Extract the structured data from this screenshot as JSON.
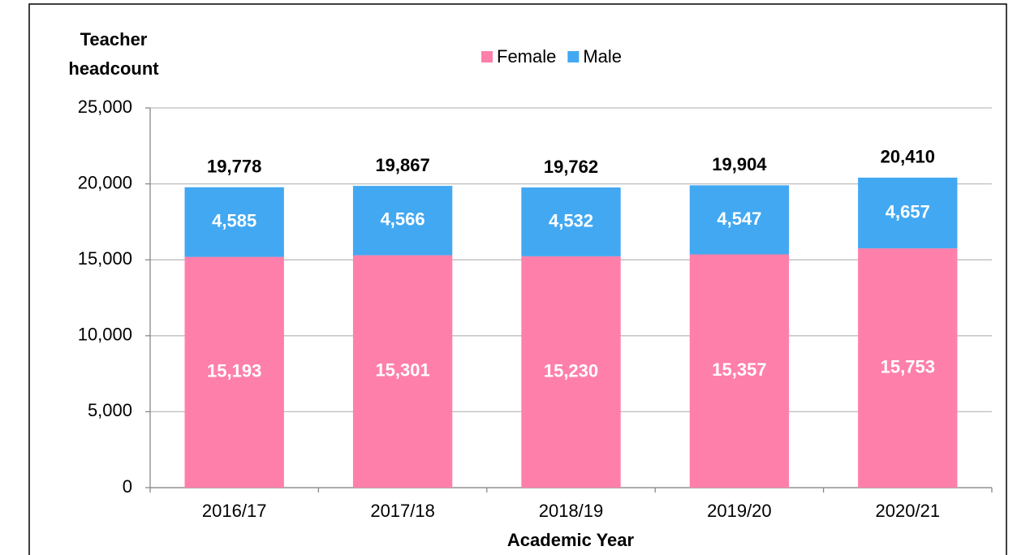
{
  "chart_data": {
    "type": "stacked_bar",
    "ylabel": [
      "Teacher",
      "headcount"
    ],
    "xlabel": "Academic  Year",
    "categories": [
      "2016/17",
      "2017/18",
      "2018/19",
      "2019/20",
      "2020/21"
    ],
    "series": [
      {
        "name": "Female",
        "color": "#ff7fab",
        "values": [
          15193,
          15301,
          15230,
          15357,
          15753
        ],
        "value_labels": [
          "15,193",
          "15,301",
          "15,230",
          "15,357",
          "15,753"
        ]
      },
      {
        "name": "Male",
        "color": "#42a8f2",
        "values": [
          4585,
          4566,
          4532,
          4547,
          4657
        ],
        "value_labels": [
          "4,585",
          "4,566",
          "4,532",
          "4,547",
          "4,657"
        ]
      }
    ],
    "totals": [
      19778,
      19867,
      19762,
      19904,
      20410
    ],
    "totals_labels": [
      "19,778",
      "19,867",
      "19,762",
      "19,904",
      "20,410"
    ],
    "ylim": [
      0,
      25000
    ],
    "yticks": [
      0,
      {
        "value": 5000,
        "label": "5,000"
      },
      {
        "value": 10000,
        "label": "10,000"
      },
      {
        "value": 15000,
        "label": "15,000"
      },
      {
        "value": 20000,
        "label": "20,000"
      },
      {
        "value": 25000,
        "label": "25,000"
      }
    ],
    "grid": true,
    "legend": "top"
  }
}
